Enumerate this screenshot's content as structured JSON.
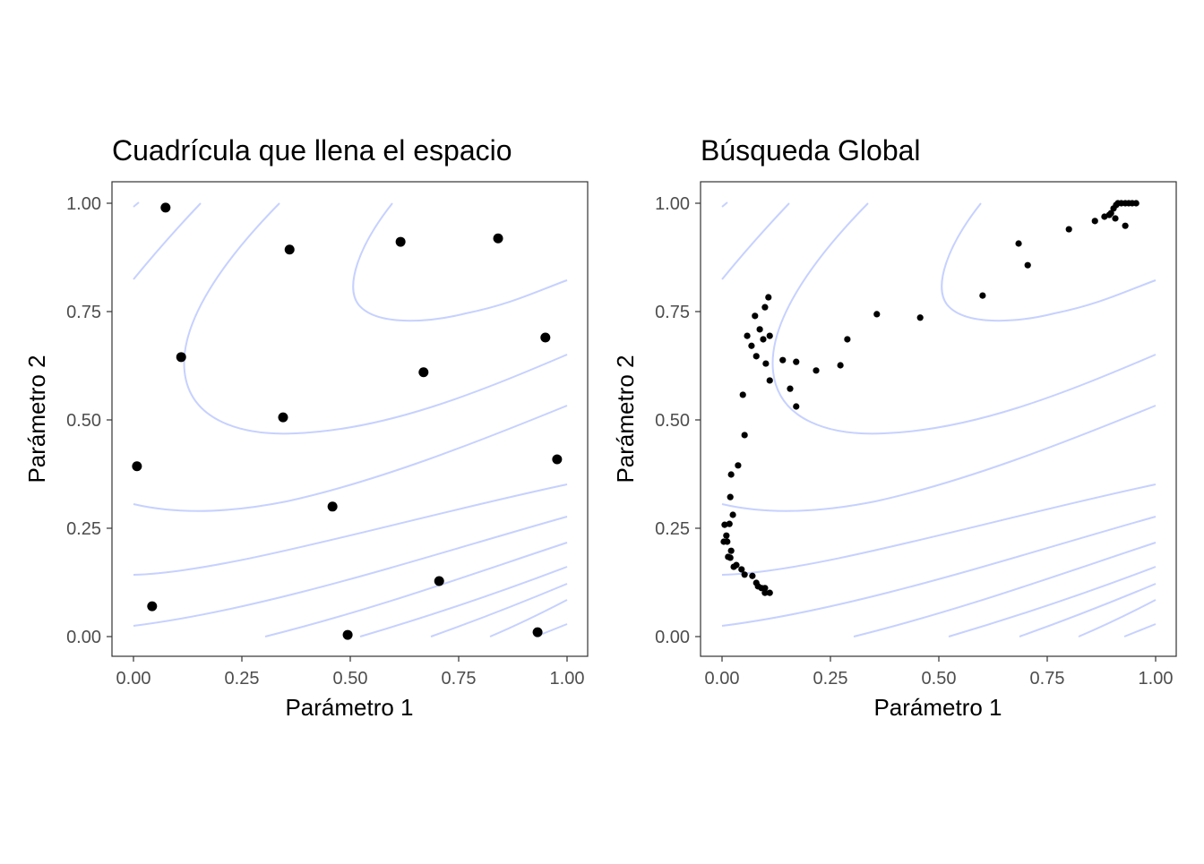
{
  "chart_data": [
    {
      "type": "scatter",
      "title": "Cuadrícula que llena el espacio",
      "xlabel": "Parámetro 1",
      "ylabel": "Parámetro 2",
      "xlim": [
        0,
        1
      ],
      "ylim": [
        0,
        1
      ],
      "xticks": [
        "0.00",
        "0.25",
        "0.50",
        "0.75",
        "1.00"
      ],
      "yticks": [
        "0.00",
        "0.25",
        "0.50",
        "0.75",
        "1.00"
      ],
      "grid": false,
      "point_color": "#000000",
      "contour_color": "#c6d1ff",
      "points": [
        [
          0.074,
          0.99
        ],
        [
          0.36,
          0.893
        ],
        [
          0.616,
          0.911
        ],
        [
          0.841,
          0.919
        ],
        [
          0.95,
          0.69
        ],
        [
          0.11,
          0.645
        ],
        [
          0.669,
          0.61
        ],
        [
          0.345,
          0.506
        ],
        [
          0.008,
          0.393
        ],
        [
          0.977,
          0.409
        ],
        [
          0.459,
          0.3
        ],
        [
          0.705,
          0.128
        ],
        [
          0.043,
          0.07
        ],
        [
          0.494,
          0.004
        ],
        [
          0.932,
          0.01
        ]
      ]
    },
    {
      "type": "scatter",
      "title": "Búsqueda Global",
      "xlabel": "Parámetro 1",
      "ylabel": "Parámetro 2",
      "xlim": [
        0,
        1
      ],
      "ylim": [
        0,
        1
      ],
      "xticks": [
        "0.00",
        "0.25",
        "0.50",
        "0.75",
        "1.00"
      ],
      "yticks": [
        "0.00",
        "0.25",
        "0.50",
        "0.75",
        "1.00"
      ],
      "grid": false,
      "point_color": "#000000",
      "contour_color": "#c6d1ff",
      "points": [
        [
          0.107,
          0.783
        ],
        [
          0.099,
          0.76
        ],
        [
          0.076,
          0.74
        ],
        [
          0.087,
          0.709
        ],
        [
          0.058,
          0.694
        ],
        [
          0.11,
          0.694
        ],
        [
          0.095,
          0.686
        ],
        [
          0.068,
          0.671
        ],
        [
          0.079,
          0.647
        ],
        [
          0.101,
          0.63
        ],
        [
          0.14,
          0.638
        ],
        [
          0.171,
          0.634
        ],
        [
          0.11,
          0.591
        ],
        [
          0.157,
          0.572
        ],
        [
          0.171,
          0.531
        ],
        [
          0.048,
          0.558
        ],
        [
          0.052,
          0.465
        ],
        [
          0.217,
          0.614
        ],
        [
          0.273,
          0.626
        ],
        [
          0.289,
          0.686
        ],
        [
          0.357,
          0.744
        ],
        [
          0.457,
          0.736
        ],
        [
          0.601,
          0.787
        ],
        [
          0.684,
          0.907
        ],
        [
          0.705,
          0.857
        ],
        [
          0.8,
          0.94
        ],
        [
          0.86,
          0.959
        ],
        [
          0.882,
          0.969
        ],
        [
          0.907,
          0.965
        ],
        [
          0.93,
          0.948
        ],
        [
          0.893,
          0.973
        ],
        [
          0.897,
          0.977
        ],
        [
          0.903,
          0.988
        ],
        [
          0.909,
          0.996
        ],
        [
          0.913,
          1.0
        ],
        [
          0.921,
          1.0
        ],
        [
          0.93,
          1.0
        ],
        [
          0.938,
          1.0
        ],
        [
          0.946,
          1.0
        ],
        [
          0.955,
          1.0
        ],
        [
          0.037,
          0.395
        ],
        [
          0.021,
          0.374
        ],
        [
          0.019,
          0.322
        ],
        [
          0.025,
          0.281
        ],
        [
          0.006,
          0.258
        ],
        [
          0.017,
          0.26
        ],
        [
          0.01,
          0.233
        ],
        [
          0.004,
          0.219
        ],
        [
          0.012,
          0.219
        ],
        [
          0.021,
          0.198
        ],
        [
          0.014,
          0.184
        ],
        [
          0.019,
          0.182
        ],
        [
          0.027,
          0.161
        ],
        [
          0.033,
          0.165
        ],
        [
          0.045,
          0.155
        ],
        [
          0.052,
          0.143
        ],
        [
          0.07,
          0.14
        ],
        [
          0.079,
          0.124
        ],
        [
          0.083,
          0.116
        ],
        [
          0.091,
          0.112
        ],
        [
          0.099,
          0.112
        ],
        [
          0.099,
          0.101
        ],
        [
          0.11,
          0.101
        ]
      ]
    }
  ]
}
